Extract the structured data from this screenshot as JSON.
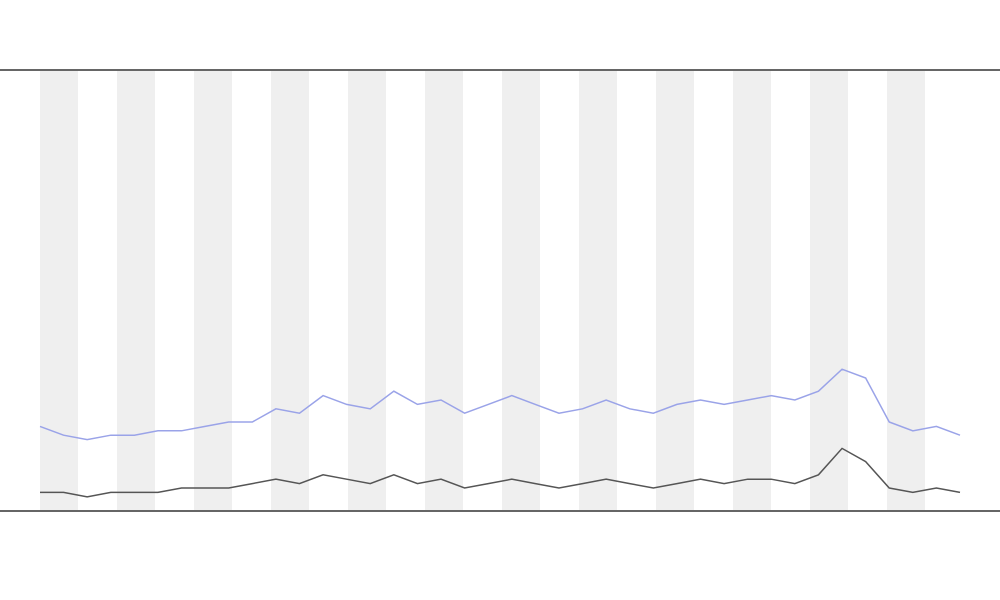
{
  "chart_data": {
    "type": "line",
    "categories": [
      null,
      null,
      null,
      null,
      null,
      null,
      null,
      null,
      null,
      null,
      null,
      null,
      null,
      null,
      null,
      null,
      null,
      null,
      null,
      null,
      null,
      null,
      null,
      null,
      null,
      null,
      null,
      null,
      null,
      null,
      null,
      null,
      null,
      null,
      null,
      null,
      null,
      null,
      null,
      null
    ],
    "series": [
      {
        "color": "#9aa3e8",
        "values": [
          0.19,
          0.17,
          0.16,
          0.17,
          0.17,
          0.18,
          0.18,
          0.19,
          0.2,
          0.2,
          0.23,
          0.22,
          0.26,
          0.24,
          0.23,
          0.27,
          0.24,
          0.25,
          0.22,
          0.24,
          0.26,
          0.24,
          0.22,
          0.23,
          0.25,
          0.23,
          0.22,
          0.24,
          0.25,
          0.24,
          0.25,
          0.26,
          0.25,
          0.27,
          0.32,
          0.3,
          0.2,
          0.18,
          0.19,
          0.17
        ]
      },
      {
        "color": "#555555",
        "values": [
          0.04,
          0.04,
          0.03,
          0.04,
          0.04,
          0.04,
          0.05,
          0.05,
          0.05,
          0.06,
          0.07,
          0.06,
          0.08,
          0.07,
          0.06,
          0.08,
          0.06,
          0.07,
          0.05,
          0.06,
          0.07,
          0.06,
          0.05,
          0.06,
          0.07,
          0.06,
          0.05,
          0.06,
          0.07,
          0.06,
          0.07,
          0.07,
          0.06,
          0.08,
          0.14,
          0.11,
          0.05,
          0.04,
          0.05,
          0.04
        ]
      }
    ],
    "ylim": [
      0,
      1
    ]
  }
}
